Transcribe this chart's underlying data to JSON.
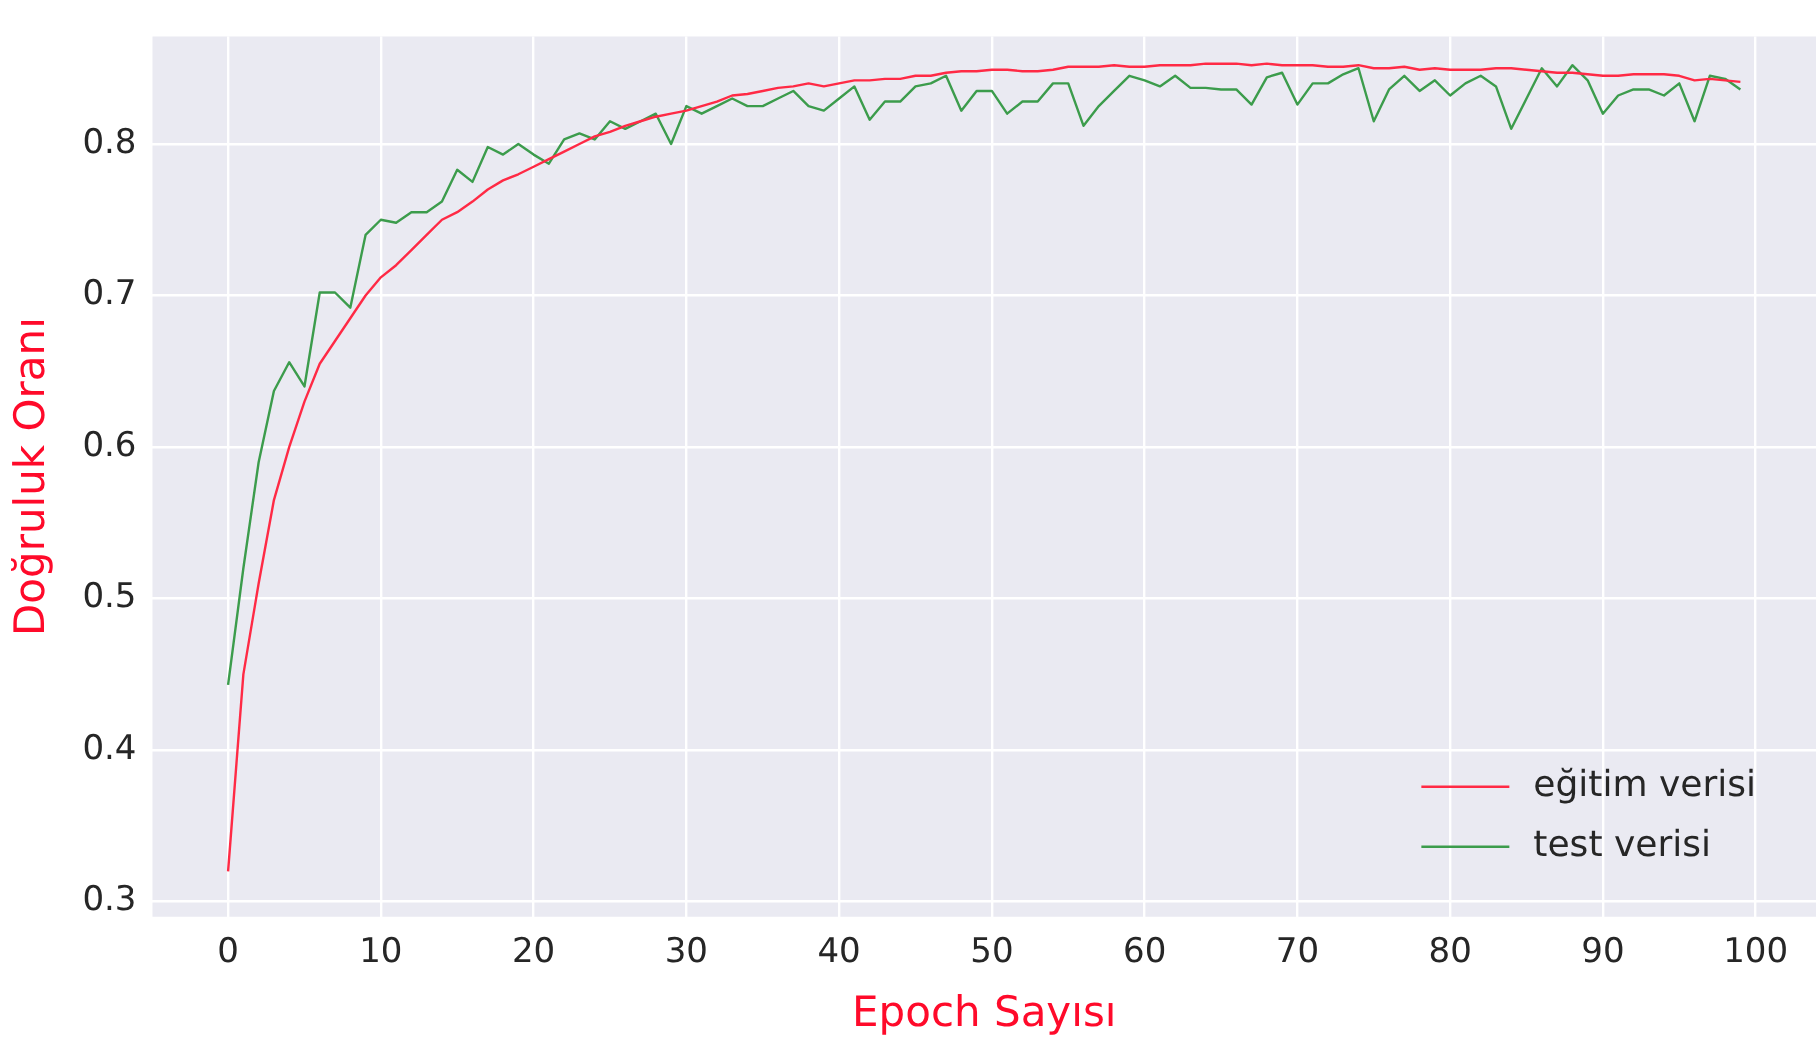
{
  "chart_data": {
    "type": "line",
    "xlabel": "Epoch Sayısı",
    "ylabel": "Doğruluk Oranı",
    "x": [
      0,
      1,
      2,
      3,
      4,
      5,
      6,
      7,
      8,
      9,
      10,
      11,
      12,
      13,
      14,
      15,
      16,
      17,
      18,
      19,
      20,
      21,
      22,
      23,
      24,
      25,
      26,
      27,
      28,
      29,
      30,
      31,
      32,
      33,
      34,
      35,
      36,
      37,
      38,
      39,
      40,
      41,
      42,
      43,
      44,
      45,
      46,
      47,
      48,
      49,
      50,
      51,
      52,
      53,
      54,
      55,
      56,
      57,
      58,
      59,
      60,
      61,
      62,
      63,
      64,
      65,
      66,
      67,
      68,
      69,
      70,
      71,
      72,
      73,
      74,
      75,
      76,
      77,
      78,
      79,
      80,
      81,
      82,
      83,
      84,
      85,
      86,
      87,
      88,
      89,
      90,
      91,
      92,
      93,
      94,
      95,
      96,
      97,
      98,
      99
    ],
    "series": [
      {
        "name": "eğitim verisi",
        "color": "#ff2a45",
        "values": [
          0.32,
          0.45,
          0.51,
          0.565,
          0.6,
          0.63,
          0.655,
          0.67,
          0.685,
          0.7,
          0.712,
          0.72,
          0.73,
          0.74,
          0.75,
          0.755,
          0.762,
          0.77,
          0.776,
          0.78,
          0.785,
          0.79,
          0.795,
          0.8,
          0.805,
          0.808,
          0.812,
          0.815,
          0.818,
          0.82,
          0.822,
          0.825,
          0.828,
          0.832,
          0.833,
          0.835,
          0.837,
          0.838,
          0.84,
          0.838,
          0.84,
          0.842,
          0.842,
          0.843,
          0.843,
          0.845,
          0.845,
          0.847,
          0.848,
          0.848,
          0.849,
          0.849,
          0.848,
          0.848,
          0.849,
          0.851,
          0.851,
          0.851,
          0.852,
          0.851,
          0.851,
          0.852,
          0.852,
          0.852,
          0.853,
          0.853,
          0.853,
          0.852,
          0.853,
          0.852,
          0.852,
          0.852,
          0.851,
          0.851,
          0.852,
          0.85,
          0.85,
          0.851,
          0.849,
          0.85,
          0.849,
          0.849,
          0.849,
          0.85,
          0.85,
          0.849,
          0.848,
          0.847,
          0.847,
          0.846,
          0.845,
          0.845,
          0.846,
          0.846,
          0.846,
          0.845,
          0.842,
          0.843,
          0.842,
          0.841
        ]
      },
      {
        "name": "test verisi",
        "color": "#3c9c4c",
        "values": [
          0.443,
          0.52,
          0.59,
          0.637,
          0.656,
          0.64,
          0.702,
          0.702,
          0.692,
          0.74,
          0.75,
          0.748,
          0.755,
          0.755,
          0.762,
          0.783,
          0.775,
          0.798,
          0.793,
          0.8,
          0.793,
          0.787,
          0.803,
          0.807,
          0.803,
          0.815,
          0.81,
          0.815,
          0.82,
          0.8,
          0.825,
          0.82,
          0.825,
          0.83,
          0.825,
          0.825,
          0.83,
          0.835,
          0.825,
          0.822,
          0.83,
          0.838,
          0.816,
          0.828,
          0.828,
          0.838,
          0.84,
          0.845,
          0.822,
          0.835,
          0.835,
          0.82,
          0.828,
          0.828,
          0.84,
          0.84,
          0.812,
          0.825,
          0.835,
          0.845,
          0.842,
          0.838,
          0.845,
          0.837,
          0.837,
          0.836,
          0.836,
          0.826,
          0.844,
          0.847,
          0.826,
          0.84,
          0.84,
          0.846,
          0.85,
          0.815,
          0.836,
          0.845,
          0.835,
          0.842,
          0.832,
          0.84,
          0.845,
          0.838,
          0.81,
          0.83,
          0.85,
          0.838,
          0.852,
          0.842,
          0.82,
          0.832,
          0.836,
          0.836,
          0.832,
          0.84,
          0.815,
          0.845,
          0.843,
          0.836
        ]
      }
    ],
    "xlim": [
      -4.95,
      103.95
    ],
    "ylim": [
      0.29,
      0.871
    ],
    "xticks": [
      0,
      10,
      20,
      30,
      40,
      50,
      60,
      70,
      80,
      90,
      100
    ],
    "yticks": [
      0.3,
      0.4,
      0.5,
      0.6,
      0.7,
      0.8
    ],
    "grid": true,
    "legend": "bottom right",
    "line_style": "solid",
    "marker": "none"
  }
}
